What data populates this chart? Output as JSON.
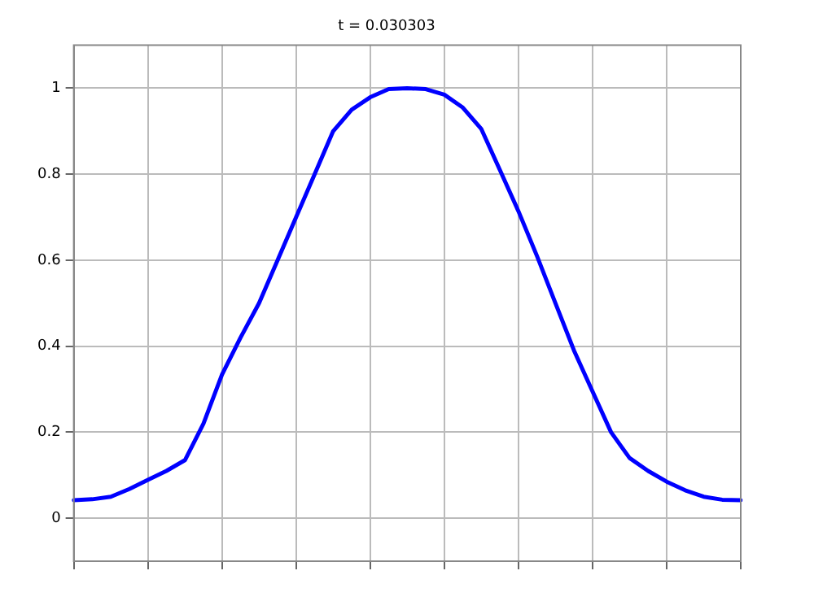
{
  "chart_data": {
    "type": "line",
    "title": "t = 0.030303",
    "categories": [
      null,
      null,
      null,
      null,
      null,
      null,
      null,
      null,
      null,
      null,
      null,
      null,
      null,
      null,
      null,
      null,
      null,
      null,
      null,
      null,
      null,
      null,
      null,
      null,
      null,
      null,
      null,
      null,
      null,
      null,
      null,
      null,
      null,
      null,
      null,
      null,
      null
    ],
    "series": [
      {
        "color": "#0000ff",
        "values": [
          0.042,
          0.044,
          0.05,
          0.068,
          0.089,
          0.11,
          0.135,
          0.22,
          0.334,
          0.42,
          0.5,
          0.6,
          0.7,
          0.8,
          0.9,
          0.95,
          0.979,
          0.998,
          1.0,
          0.998,
          0.985,
          0.955,
          0.905,
          0.81,
          0.714,
          0.61,
          0.5,
          0.39,
          0.295,
          0.2,
          0.14,
          0.11,
          0.085,
          0.065,
          0.05,
          0.043,
          0.042
        ]
      }
    ],
    "ylim": [
      -0.1,
      1.1
    ],
    "yticks": [
      0,
      0.2,
      0.4,
      0.6,
      0.8,
      1
    ],
    "tick_labels": "y",
    "grid": true,
    "legend": false,
    "marker": "none",
    "line_style": "solid"
  }
}
